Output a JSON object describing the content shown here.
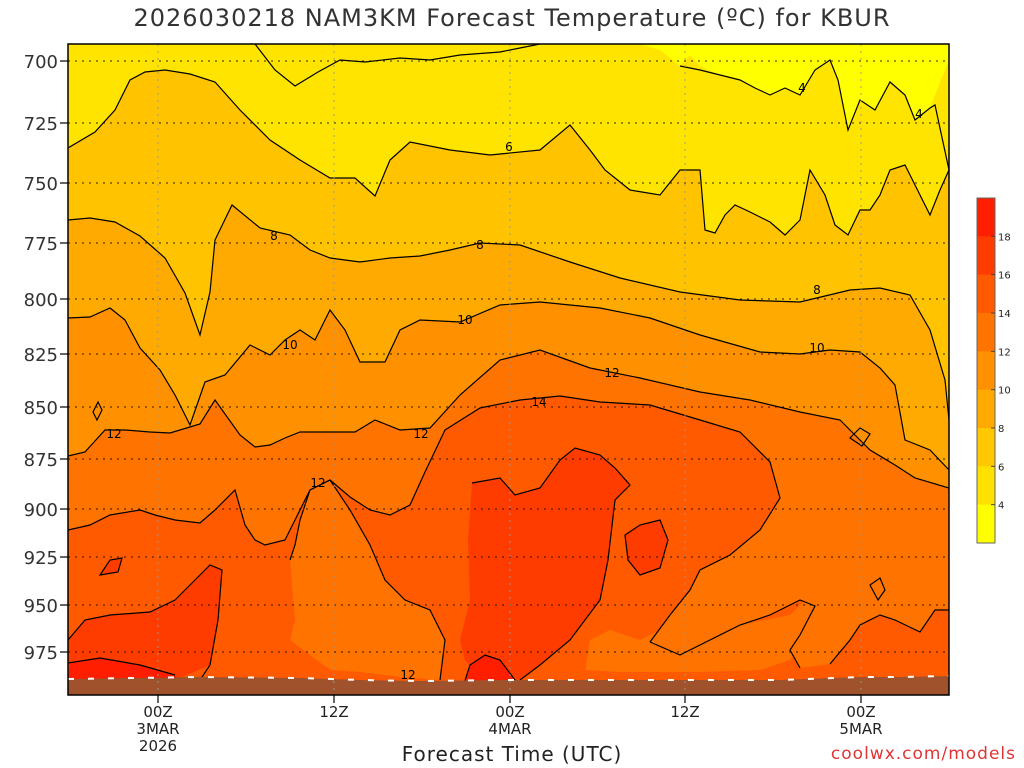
{
  "title": "2026030218 NAM3KM Forecast Temperature (ºC) for KBUR",
  "x_axis_title": "Forecast Time (UTC)",
  "credit": "coolwx.com/models",
  "chart_data": {
    "type": "contour",
    "variable": "Temperature (ºC)",
    "y_ticks": [
      "700",
      "725",
      "750",
      "775",
      "800",
      "825",
      "850",
      "875",
      "900",
      "925",
      "950",
      "975"
    ],
    "x_ticks": [
      {
        "lines": [
          "00Z",
          "3MAR",
          "2026"
        ]
      },
      {
        "lines": [
          "12Z"
        ]
      },
      {
        "lines": [
          "00Z",
          "4MAR"
        ]
      },
      {
        "lines": [
          "12Z"
        ]
      },
      {
        "lines": [
          "00Z",
          "5MAR"
        ]
      }
    ],
    "contour_labels": [
      {
        "text": "4"
      },
      {
        "text": "4"
      },
      {
        "text": "6"
      },
      {
        "text": "8"
      },
      {
        "text": "8"
      },
      {
        "text": "8"
      },
      {
        "text": "10"
      },
      {
        "text": "10"
      },
      {
        "text": "10"
      },
      {
        "text": "12"
      },
      {
        "text": "12"
      },
      {
        "text": "12"
      },
      {
        "text": "12"
      },
      {
        "text": "12"
      },
      {
        "text": "14"
      }
    ],
    "colorbar": {
      "labels": [
        "4",
        "6",
        "8",
        "10",
        "12",
        "14",
        "16",
        "18"
      ],
      "colors": [
        "#ffff00",
        "#ffe100",
        "#ffc800",
        "#ffaa00",
        "#ff9100",
        "#ff7300",
        "#ff5a00",
        "#ff3c00",
        "#ff1e00"
      ]
    },
    "ground_color": "#a0522d",
    "grid": true
  }
}
